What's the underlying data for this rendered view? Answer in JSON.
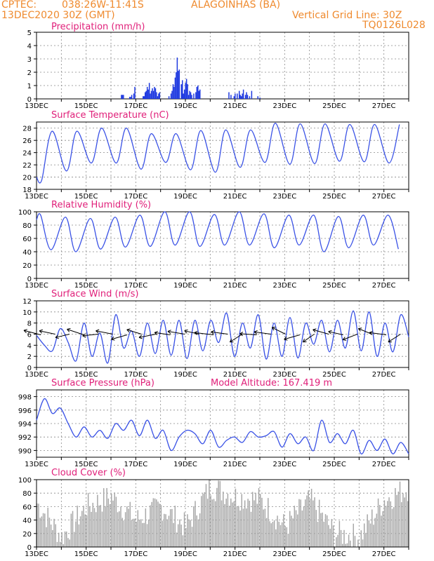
{
  "header": {
    "source": "CPTEC:",
    "location": "038:26W-11:41S",
    "station": "ALAGOINHAS (BA)",
    "run": "13DEC2020 30Z (GMT)",
    "vgrid": "Vertical Grid Line: 30Z",
    "code": "TQ0126L028",
    "model_altitude": "Model Altitude: 167.419 m"
  },
  "colors": {
    "line": "#3a52e6",
    "bars_precip": "#1f3ae0",
    "bars_cloud": "#a8a8a8",
    "title": "#e0207a",
    "header": "#ef8a2e"
  },
  "x_axis": {
    "start": "13DEC2020 00Z",
    "end": "28DEC2020 00Z",
    "tick_labels": [
      "13DEC",
      "15DEC",
      "17DEC",
      "19DEC",
      "21DEC",
      "23DEC",
      "25DEC",
      "27DEC"
    ],
    "grid": "daily dotted"
  },
  "chart_data": [
    {
      "type": "bar",
      "title": "Precipitation (mm/h)",
      "ylim": [
        0,
        5
      ],
      "yticks": [
        "0",
        "1",
        "2",
        "3",
        "4",
        "5"
      ],
      "x_hours": [
        82,
        83,
        84,
        90,
        91,
        92,
        94,
        95,
        103,
        104,
        105,
        106,
        107,
        108,
        109,
        110,
        111,
        112,
        113,
        114,
        115,
        116,
        117,
        118,
        119,
        128,
        130,
        131,
        132,
        133,
        134,
        135,
        136,
        137,
        138,
        140,
        141,
        142,
        143,
        144,
        145,
        146,
        147,
        148,
        149,
        150,
        152,
        154,
        155,
        156,
        157,
        158,
        186,
        188,
        191,
        192,
        194,
        196,
        197,
        198,
        199,
        200,
        202,
        203,
        204,
        206,
        208,
        214,
        216
      ],
      "values": [
        0.3,
        0.3,
        0.3,
        0.15,
        0.15,
        0.3,
        0.4,
        0.9,
        0.2,
        0.2,
        0.5,
        0.6,
        0.9,
        0.7,
        1.2,
        0.4,
        0.6,
        0.8,
        0.6,
        0.9,
        0.8,
        0.5,
        0.2,
        0.4,
        0.5,
        0.2,
        0.4,
        0.6,
        1.1,
        0.9,
        1.6,
        2.0,
        3.1,
        2.1,
        2.2,
        1.1,
        1.4,
        0.4,
        0.7,
        1.2,
        1.5,
        1.1,
        0.3,
        0.6,
        0.5,
        0.3,
        0.4,
        0.5,
        0.9,
        1.0,
        0.6,
        0.7,
        0.5,
        0.3,
        0.2,
        0.4,
        0.4,
        0.6,
        0.3,
        0.2,
        0.4,
        0.7,
        0.3,
        0.5,
        0.3,
        0.2,
        0.6,
        0.2,
        0.1
      ]
    },
    {
      "type": "line",
      "title": "Surface Temperature (nC)",
      "ylim": [
        18,
        29
      ],
      "yticks": [
        "18",
        "20",
        "22",
        "24",
        "26",
        "28"
      ],
      "daily_min": [
        19.5,
        21.0,
        22.3,
        22.3,
        21.3,
        22.4,
        21.2,
        20.8,
        21.6,
        22.4,
        22.1,
        22.2,
        22.6,
        22.5,
        22.3,
        22.0
      ],
      "daily_max": [
        27.5,
        27.5,
        28.0,
        28.0,
        27.1,
        27.1,
        27.6,
        27.7,
        27.7,
        28.8,
        28.7,
        28.7,
        28.6,
        28.6,
        28.6,
        28.6
      ]
    },
    {
      "type": "line",
      "title": "Relative Humidity (%)",
      "ylim": [
        0,
        100
      ],
      "yticks": [
        "0",
        "20",
        "40",
        "60",
        "80",
        "100"
      ],
      "daily_min": [
        43,
        40,
        44,
        47,
        48,
        50,
        48,
        50,
        50,
        46,
        50,
        40,
        46,
        50,
        44,
        40
      ],
      "daily_max": [
        95,
        92,
        90,
        92,
        95,
        100,
        100,
        96,
        100,
        97,
        95,
        95,
        93,
        95,
        95,
        96
      ]
    },
    {
      "type": "line",
      "title": "Surface Wind (m/s)",
      "ylim": [
        0,
        12
      ],
      "yticks": [
        "0",
        "2",
        "4",
        "6",
        "8",
        "10",
        "12"
      ],
      "values": [
        5.8,
        4.0,
        3.0,
        7.0,
        4.5,
        1.2,
        8.0,
        2.0,
        6.2,
        0.8,
        9.5,
        3.5,
        6.6,
        2.0,
        8.0,
        2.5,
        8.5,
        2.2,
        8.5,
        1.6,
        8.5,
        3.0,
        8.5,
        4.5,
        9.8,
        2.0,
        8.0,
        3.5,
        9.5,
        1.5,
        8.0,
        2.0,
        9.0,
        1.7,
        8.0,
        4.2,
        8.5,
        2.8,
        8.5,
        3.5,
        10.2,
        3.0,
        10.0,
        2.0,
        8.0,
        2.8,
        9.5,
        5.5
      ],
      "arrows_note": "wind direction vectors along the 6 m/s level"
    },
    {
      "type": "line",
      "title": "Surface Pressure (hPa)",
      "ylim": [
        989,
        999
      ],
      "yticks": [
        "990",
        "992",
        "994",
        "996",
        "998"
      ],
      "values": [
        994.5,
        997.7,
        995.5,
        996.3,
        994.0,
        992.0,
        993.5,
        992.0,
        993.0,
        991.8,
        994.0,
        993.0,
        994.5,
        992.2,
        994.5,
        991.8,
        993.0,
        990.0,
        992.0,
        993.0,
        992.5,
        991.0,
        993.0,
        990.5,
        991.5,
        992.0,
        991.2,
        992.8,
        992.0,
        992.2,
        992.8,
        990.5,
        992.5,
        991.0,
        992.0,
        990.0,
        994.5,
        991.2,
        992.5,
        991.0,
        993.0,
        989.5,
        991.5,
        990.0,
        991.7,
        989.5,
        991.2,
        989.5
      ]
    },
    {
      "type": "area",
      "title": "Cloud Cover (%)",
      "ylim": [
        0,
        100
      ],
      "yticks": [
        "0",
        "20",
        "40",
        "60",
        "80",
        "100"
      ],
      "daily_mean": [
        65,
        15,
        60,
        75,
        40,
        60,
        30,
        90,
        75,
        70,
        30,
        70,
        20,
        15,
        70,
        88
      ]
    }
  ]
}
